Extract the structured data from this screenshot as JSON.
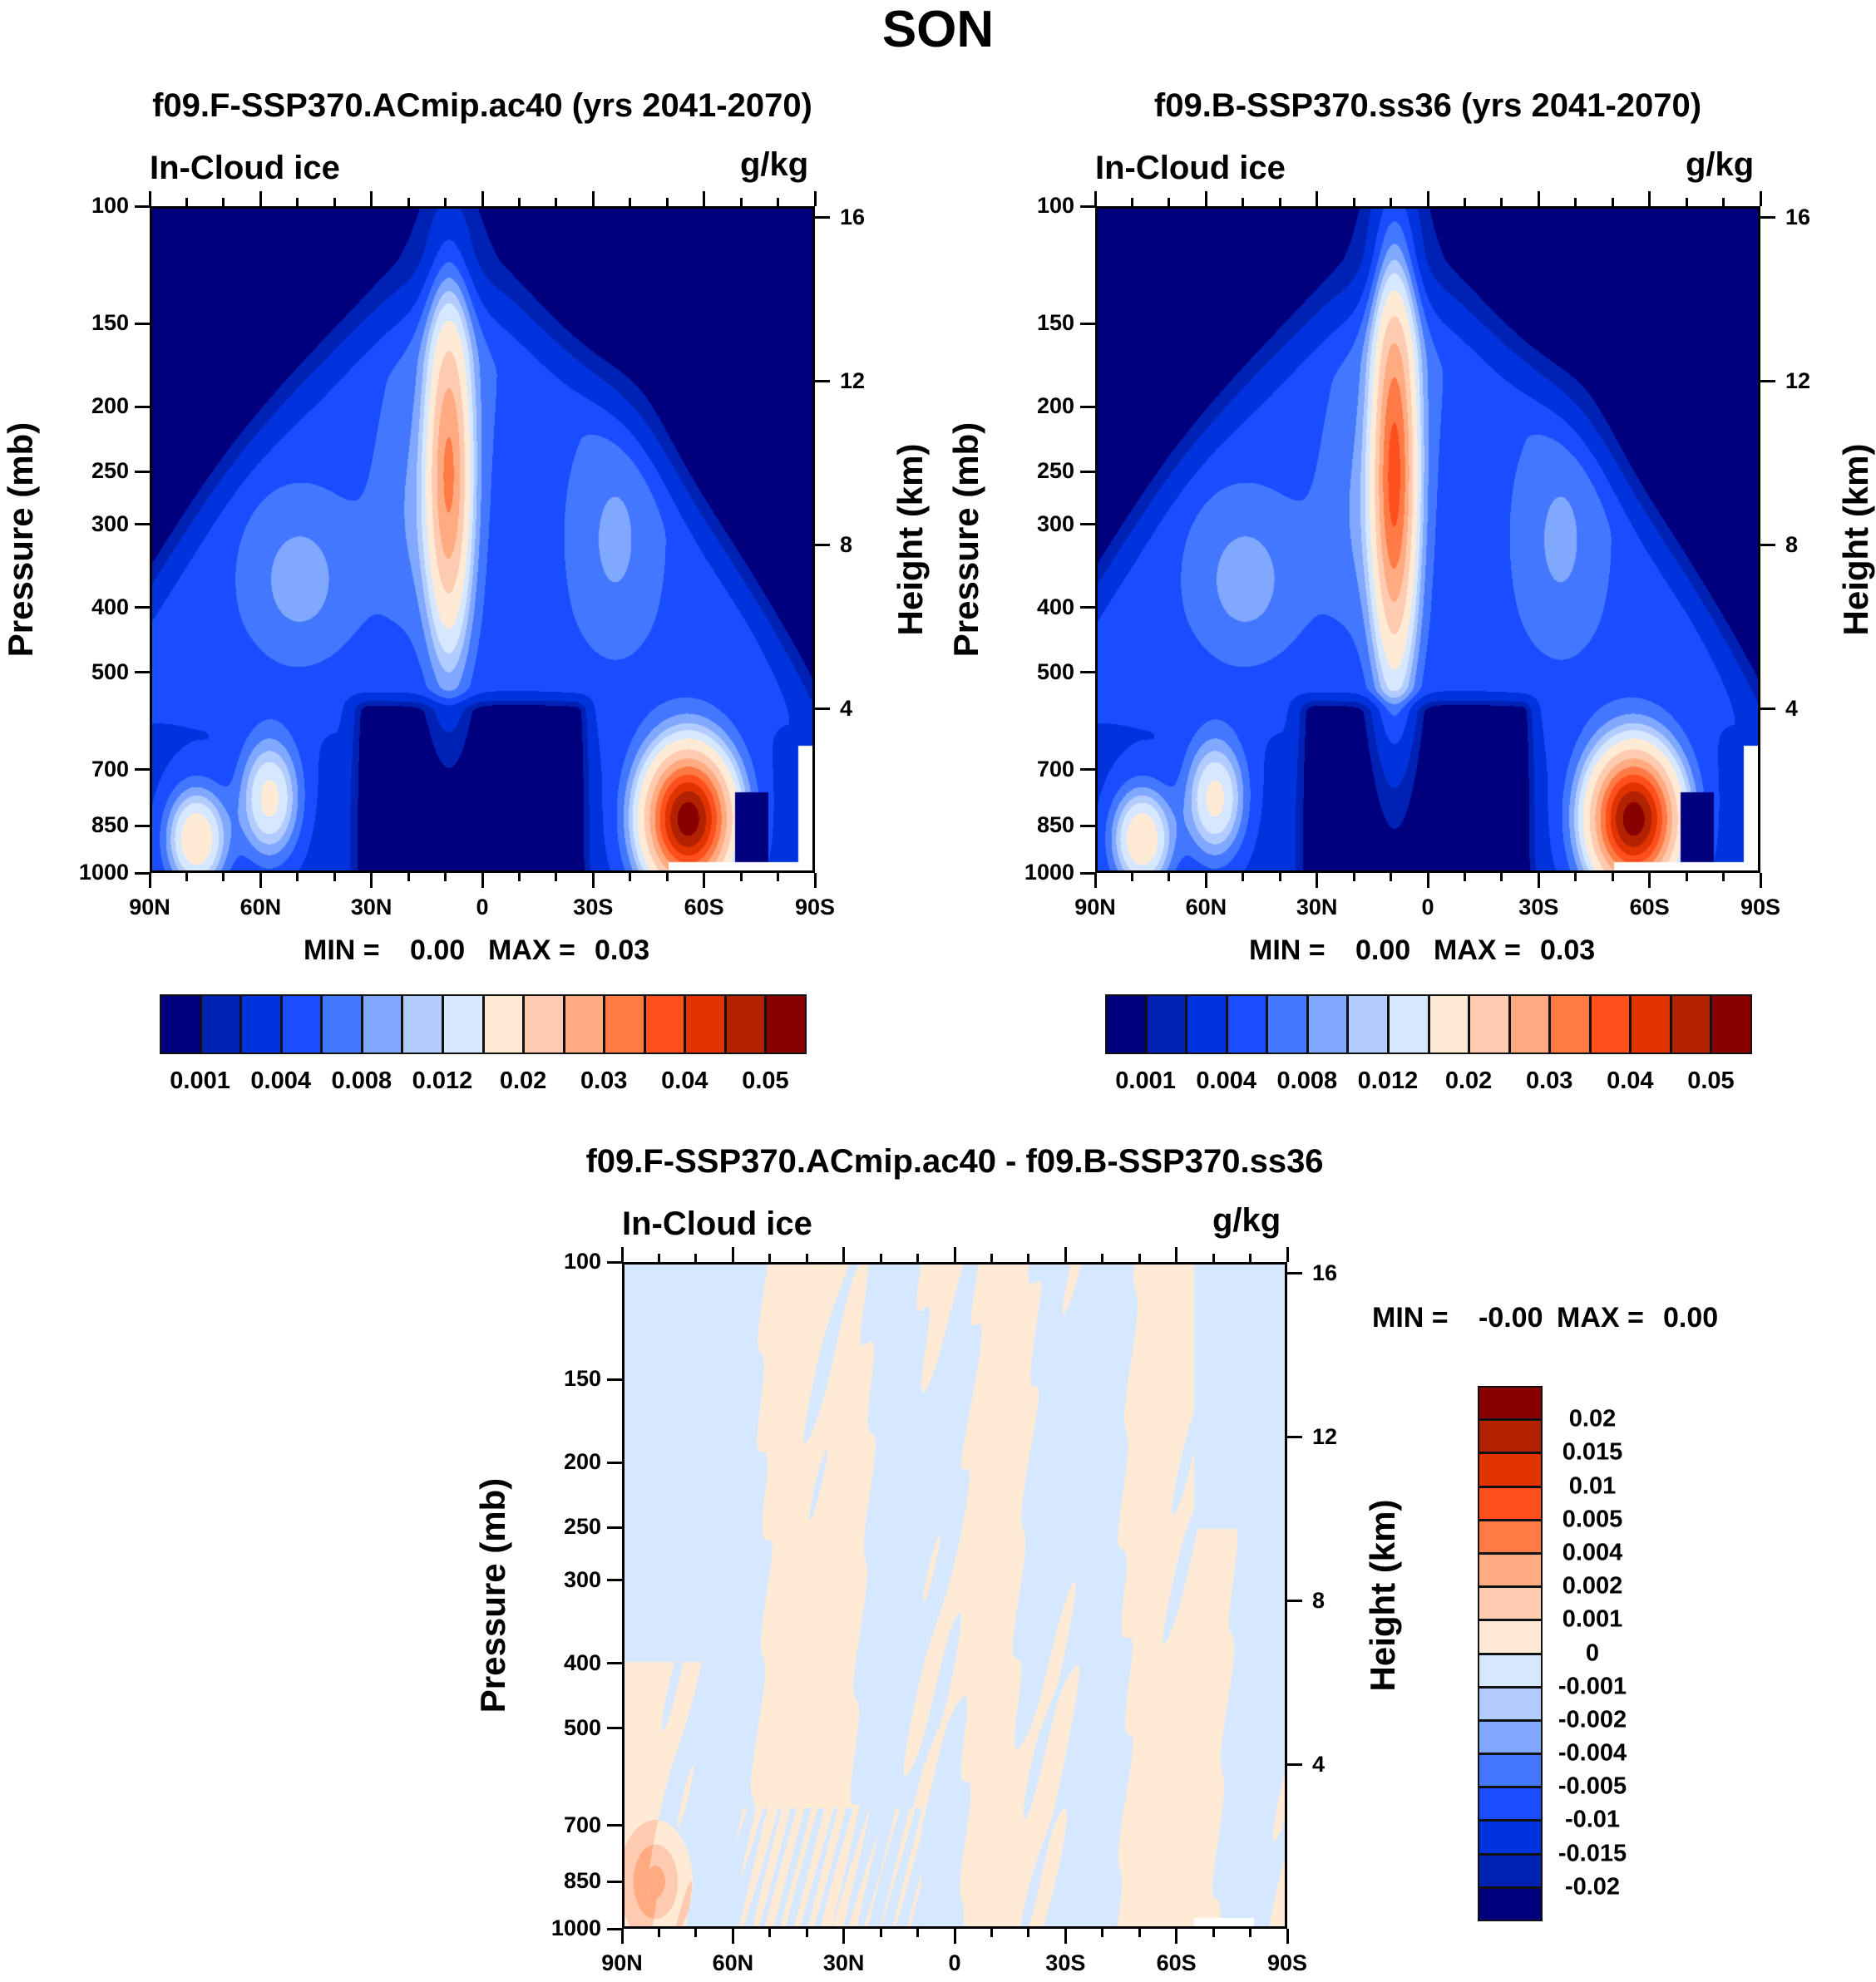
{
  "figure_title": "SON",
  "chart_data": [
    {
      "type": "heatmap",
      "panel": "top-left",
      "title": "f09.F-SSP370.ACmip.ac40 (yrs 2041-2070)",
      "left_label": "In-Cloud ice",
      "units": "g/kg",
      "ylabel": "Pressure (mb)",
      "ylabel_right": "Height (km)",
      "x_ticks": [
        "90N",
        "60N",
        "30N",
        "0",
        "30S",
        "60S",
        "90S"
      ],
      "xlim": [
        90,
        -90
      ],
      "y_ticks": [
        100,
        150,
        200,
        250,
        300,
        400,
        500,
        700,
        850,
        1000
      ],
      "ylim": [
        100,
        1000
      ],
      "y_right_ticks": [
        16,
        12,
        8,
        4
      ],
      "min_label": "MIN =",
      "min_value": "0.00",
      "max_label": "MAX =",
      "max_value": "0.03",
      "levels": [
        0.001,
        0.002,
        0.004,
        0.006,
        0.008,
        0.01,
        0.012,
        0.015,
        0.02,
        0.025,
        0.03,
        0.035,
        0.04,
        0.045,
        0.05
      ],
      "colorbar_labels": [
        "0.001",
        "0.004",
        "0.008",
        "0.012",
        "0.02",
        "0.03",
        "0.04",
        "0.05"
      ]
    },
    {
      "type": "heatmap",
      "panel": "top-right",
      "title": "f09.B-SSP370.ss36 (yrs 2041-2070)",
      "left_label": "In-Cloud ice",
      "units": "g/kg",
      "ylabel": "Pressure (mb)",
      "ylabel_right": "Height (km)",
      "x_ticks": [
        "90N",
        "60N",
        "30N",
        "0",
        "30S",
        "60S",
        "90S"
      ],
      "xlim": [
        90,
        -90
      ],
      "y_ticks": [
        100,
        150,
        200,
        250,
        300,
        400,
        500,
        700,
        850,
        1000
      ],
      "ylim": [
        100,
        1000
      ],
      "y_right_ticks": [
        16,
        12,
        8,
        4
      ],
      "min_label": "MIN =",
      "min_value": "0.00",
      "max_label": "MAX =",
      "max_value": "0.03",
      "levels": [
        0.001,
        0.002,
        0.004,
        0.006,
        0.008,
        0.01,
        0.012,
        0.015,
        0.02,
        0.025,
        0.03,
        0.035,
        0.04,
        0.045,
        0.05
      ],
      "colorbar_labels": [
        "0.001",
        "0.004",
        "0.008",
        "0.012",
        "0.02",
        "0.03",
        "0.04",
        "0.05"
      ]
    },
    {
      "type": "heatmap",
      "panel": "difference",
      "title": "f09.F-SSP370.ACmip.ac40 - f09.B-SSP370.ss36",
      "left_label": "In-Cloud ice",
      "units": "g/kg",
      "ylabel": "Pressure (mb)",
      "ylabel_right": "Height (km)",
      "x_ticks": [
        "90N",
        "60N",
        "30N",
        "0",
        "30S",
        "60S",
        "90S"
      ],
      "xlim": [
        90,
        -90
      ],
      "y_ticks": [
        100,
        150,
        200,
        250,
        300,
        400,
        500,
        700,
        850,
        1000
      ],
      "ylim": [
        100,
        1000
      ],
      "y_right_ticks": [
        16,
        12,
        8,
        4
      ],
      "min_label": "MIN =",
      "min_value": "-0.00",
      "max_label": "MAX =",
      "max_value": "0.00",
      "levels": [
        -0.02,
        -0.015,
        -0.01,
        -0.005,
        -0.004,
        -0.002,
        -0.001,
        0,
        0.001,
        0.002,
        0.004,
        0.005,
        0.01,
        0.015,
        0.02
      ],
      "colorbar_labels": [
        "-0.02",
        "-0.015",
        "-0.01",
        "-0.005",
        "-0.004",
        "-0.002",
        "-0.001",
        "0",
        "0.001",
        "0.002",
        "0.004",
        "0.005",
        "0.01",
        "0.015",
        "0.02"
      ]
    }
  ],
  "colors": [
    "#00007f",
    "#0022b4",
    "#0033dd",
    "#1a4dff",
    "#4477ff",
    "#80a8ff",
    "#b3ccff",
    "#d6e8ff",
    "#ffead6",
    "#ffcbb0",
    "#ffaa80",
    "#ff7a45",
    "#ff4f1c",
    "#e03300",
    "#b32200",
    "#880000"
  ],
  "missing_color": "#ffffff"
}
